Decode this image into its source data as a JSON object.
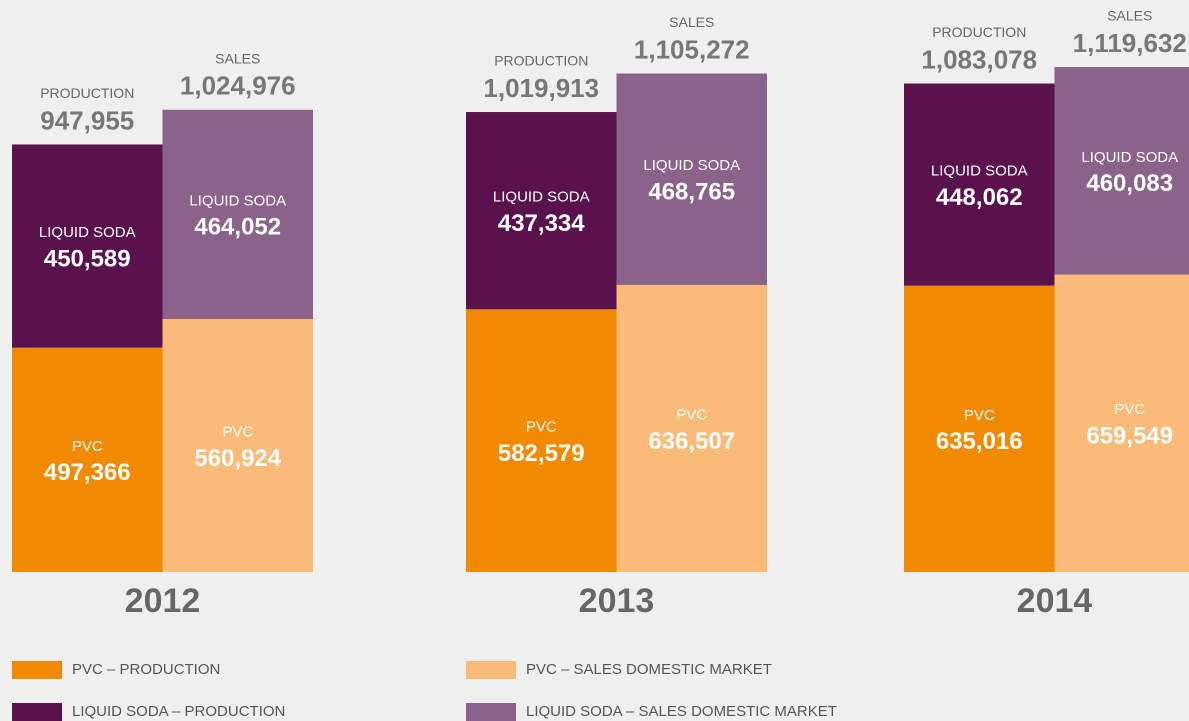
{
  "chart_data": {
    "type": "stacked_bar",
    "categories": [
      "2012",
      "2013",
      "2014"
    ],
    "stacks": [
      {
        "name": "PRODUCTION",
        "totals": [
          947955,
          1019913,
          1083078
        ],
        "total_labels": [
          "947,955",
          "1,019,913",
          "1,083,078"
        ]
      },
      {
        "name": "SALES",
        "totals": [
          1024976,
          1105272,
          1119632
        ],
        "total_labels": [
          "1,024,976",
          "1,105,272",
          "1,119,632"
        ]
      }
    ],
    "series": [
      {
        "name": "PVC – PRODUCTION",
        "segment_label": "PVC",
        "stack": "PRODUCTION",
        "color": "#f28a00",
        "values": [
          497366,
          582579,
          635016
        ],
        "value_labels": [
          "497,366",
          "582,579",
          "635,016"
        ]
      },
      {
        "name": "LIQUID SODA – PRODUCTION",
        "segment_label": "LIQUID SODA",
        "stack": "PRODUCTION",
        "color": "#5a124d",
        "values": [
          450589,
          437334,
          448062
        ],
        "value_labels": [
          "450,589",
          "437,334",
          "448,062"
        ]
      },
      {
        "name": "PVC – SALES DOMESTIC MARKET",
        "segment_label": "PVC",
        "stack": "SALES",
        "color": "#f9bb77",
        "values": [
          560924,
          636507,
          659549
        ],
        "value_labels": [
          "560,924",
          "636,507",
          "659,549"
        ]
      },
      {
        "name": "LIQUID SODA – SALES DOMESTIC MARKET",
        "segment_label": "LIQUID SODA",
        "stack": "SALES",
        "color": "#8b6289",
        "values": [
          464052,
          468765,
          460083
        ],
        "value_labels": [
          "464,052",
          "468,765",
          "460,083"
        ]
      }
    ]
  }
}
